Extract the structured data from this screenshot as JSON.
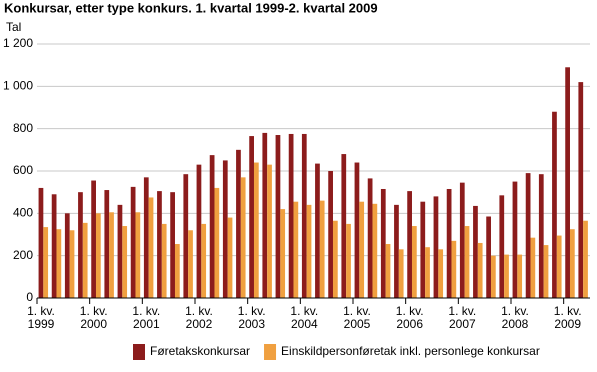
{
  "chart_data": {
    "type": "bar",
    "title": "Konkursar, etter type konkurs. 1. kvartal 1999-2. kvartal 2009",
    "y_label": "Tal",
    "categories": [
      "1. kv.\n1999",
      null,
      null,
      null,
      "1. kv.\n2000",
      null,
      null,
      null,
      "1. kv.\n2001",
      null,
      null,
      null,
      "1. kv.\n2002",
      null,
      null,
      null,
      "1. kv.\n2003",
      null,
      null,
      null,
      "1. kv.\n2004",
      null,
      null,
      null,
      "1. kv.\n2005",
      null,
      null,
      null,
      "1. kv.\n2006",
      null,
      null,
      null,
      "1. kv.\n2007",
      null,
      null,
      null,
      "1. kv.\n2008",
      null,
      null,
      null,
      "1. kv.\n2009",
      null
    ],
    "series": [
      {
        "name": "Føretakskonkursar",
        "color": "#8c1c1c",
        "values": [
          520,
          490,
          400,
          500,
          555,
          510,
          440,
          525,
          570,
          505,
          500,
          585,
          630,
          675,
          650,
          700,
          765,
          780,
          770,
          775,
          775,
          635,
          600,
          680,
          640,
          565,
          515,
          440,
          505,
          455,
          480,
          515,
          545,
          435,
          385,
          485,
          550,
          590,
          585,
          880,
          1090,
          1020
        ]
      },
      {
        "name": "Einskildpersonføretak inkl. personlege konkursar",
        "color": "#f0a040",
        "values": [
          335,
          325,
          320,
          355,
          400,
          405,
          340,
          405,
          475,
          350,
          255,
          320,
          350,
          520,
          380,
          570,
          640,
          630,
          420,
          455,
          440,
          460,
          365,
          350,
          455,
          445,
          255,
          230,
          340,
          240,
          230,
          270,
          340,
          260,
          200,
          205,
          205,
          285,
          250,
          295,
          325,
          365
        ]
      }
    ],
    "ylim": [
      0,
      1200
    ],
    "yticks": [
      0,
      200,
      400,
      600,
      800,
      {
        "value": 1000,
        "label": "1 000"
      },
      {
        "value": 1200,
        "label": "1 200"
      }
    ],
    "grid": true
  }
}
